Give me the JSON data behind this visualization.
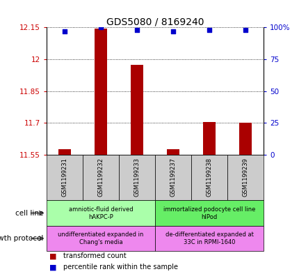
{
  "title": "GDS5080 / 8169240",
  "samples": [
    "GSM1199231",
    "GSM1199232",
    "GSM1199233",
    "GSM1199237",
    "GSM1199238",
    "GSM1199239"
  ],
  "bar_values": [
    11.575,
    12.145,
    11.975,
    11.575,
    11.705,
    11.7
  ],
  "bar_bottom": 11.55,
  "percentile_values": [
    97,
    100,
    98,
    97,
    98,
    98
  ],
  "percentile_scale_max": 100,
  "ymin": 11.55,
  "ymax": 12.15,
  "yticks": [
    11.55,
    11.7,
    11.85,
    12.0,
    12.15
  ],
  "ytick_labels": [
    "11.55",
    "11.7",
    "11.85",
    "12",
    "12.15"
  ],
  "right_yticks": [
    0,
    25,
    50,
    75,
    100
  ],
  "right_ytick_labels": [
    "0",
    "25",
    "50",
    "75",
    "100%"
  ],
  "bar_color": "#aa0000",
  "dot_color": "#0000cc",
  "cell_line_groups": [
    {
      "label": "amniotic-fluid derived\nhAKPC-P",
      "start": 0,
      "end": 3,
      "color": "#aaffaa"
    },
    {
      "label": "immortalized podocyte cell line\nhIPod",
      "start": 3,
      "end": 6,
      "color": "#66ee66"
    }
  ],
  "growth_protocol_groups": [
    {
      "label": "undifferentiated expanded in\nChang's media",
      "start": 0,
      "end": 3,
      "color": "#ee88ee"
    },
    {
      "label": "de-differentiated expanded at\n33C in RPMI-1640",
      "start": 3,
      "end": 6,
      "color": "#ee88ee"
    }
  ],
  "cell_line_label": "cell line",
  "growth_protocol_label": "growth protocol",
  "legend_bar_label": "transformed count",
  "legend_dot_label": "percentile rank within the sample"
}
